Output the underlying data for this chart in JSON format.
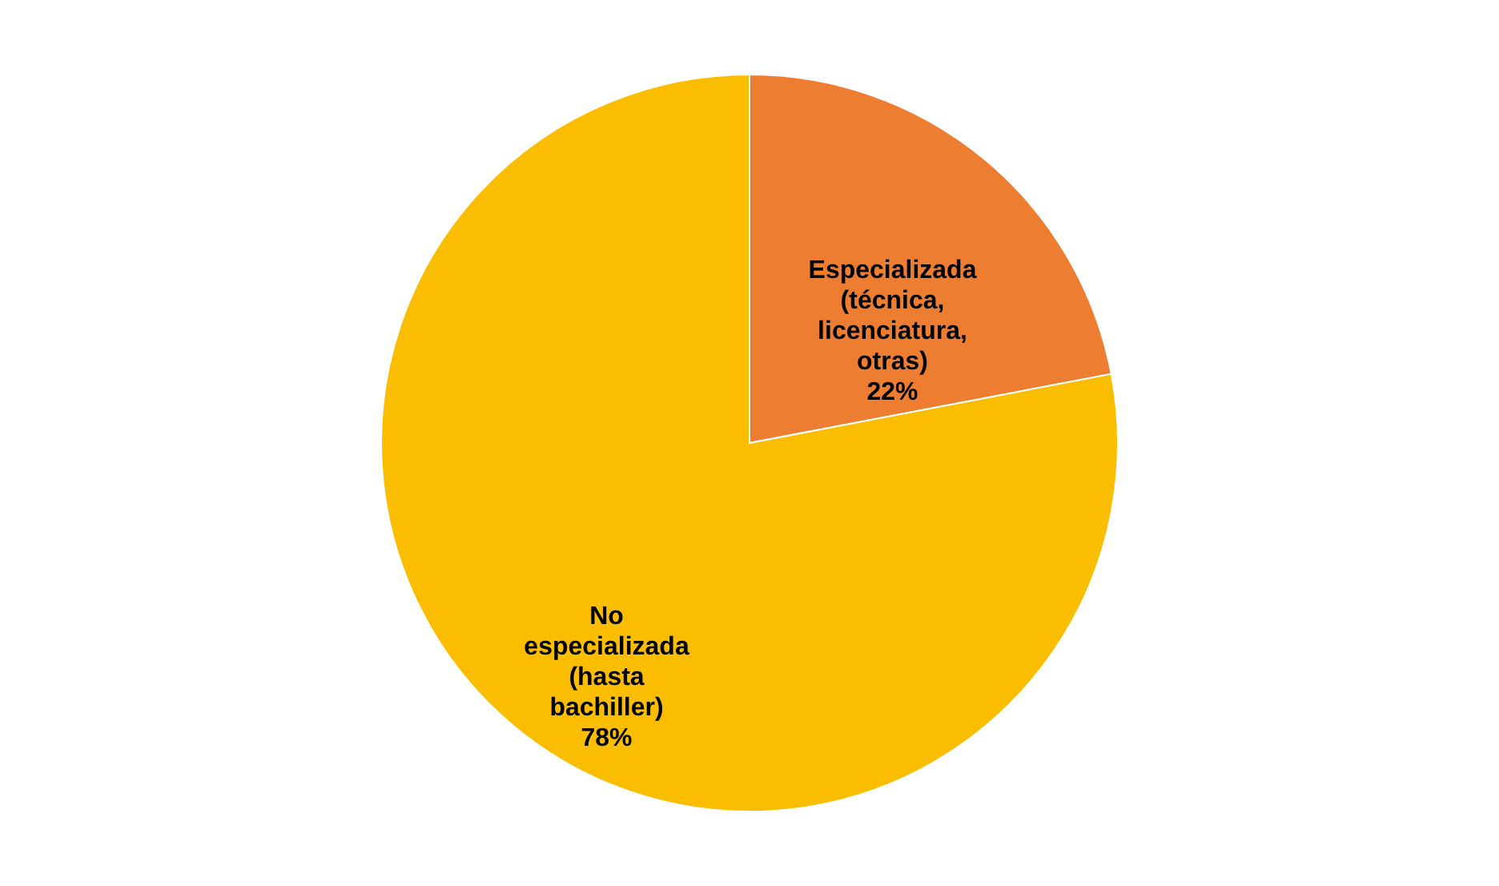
{
  "chart_data": {
    "type": "pie",
    "categories": [
      "Especializada (técnica, licenciatura, otras)",
      "No especializada (hasta bachiller)"
    ],
    "values": [
      22,
      78
    ],
    "colors": [
      "#ed7d31",
      "#fbbd00"
    ],
    "value_labels": [
      "22%",
      "78%"
    ],
    "legend": false
  }
}
